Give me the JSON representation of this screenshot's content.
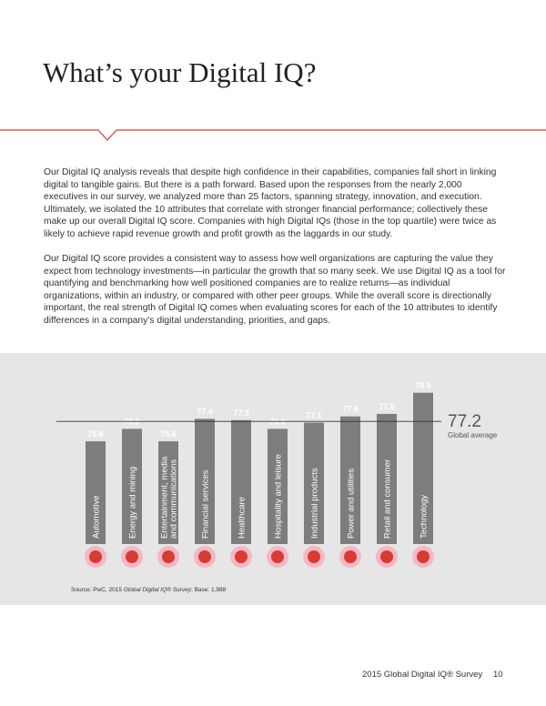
{
  "header": {
    "title": "What’s your Digital IQ?"
  },
  "paragraphs": [
    "Our Digital IQ analysis reveals that despite high confidence in their capabilities, companies fall short in linking digital to tangible gains. But there is a path forward. Based upon the responses from the nearly 2,000 executives in our survey, we analyzed more than 25 factors, spanning strategy, innovation, and execution. Ultimately, we isolated the 10 attributes that correlate with stronger financial performance; collectively these make up our overall Digital IQ score. Companies with high Digital IQs (those in the top quartile) were twice as likely to achieve rapid revenue growth and profit growth as the laggards in our study.",
    "Our Digital IQ score provides a consistent way to assess how well organizations are capturing the value they expect from technology investments—in particular the growth that so many seek. We use Digital IQ as a tool for quantifying and benchmarking how well positioned companies are to realize returns—as individual organizations, within an industry, or compared with other peer groups. While the overall score is directionally important, the real strength of Digital IQ comes when evaluating scores for each of the 10 attributes to identify differences in a company’s digital understanding, priorities, and gaps."
  ],
  "chart_data": {
    "type": "bar",
    "categories": [
      [
        "Automotive"
      ],
      [
        "Energy and mining"
      ],
      [
        "Entertainment, media",
        "and communications"
      ],
      [
        "Financial services"
      ],
      [
        "Healthcare"
      ],
      [
        "Hospitality and leisure"
      ],
      [
        "Industrial products"
      ],
      [
        "Power and utilities"
      ],
      [
        "Retail and consumer"
      ],
      [
        "Technology"
      ]
    ],
    "values": [
      75.6,
      76.6,
      75.6,
      77.4,
      77.3,
      76.6,
      77.1,
      77.6,
      77.8,
      79.5
    ],
    "color": "#7d7d7d",
    "ylim": [
      67.35,
      80.5
    ],
    "reference": {
      "value": 77.2,
      "label": "Global average"
    },
    "source": {
      "prefix": "Source: PwC, 2015 ",
      "italic": "Global Digital IQ® Survey",
      "suffix": "; Base: 1,988"
    }
  },
  "footer": {
    "title": "2015 Global Digital IQ® Survey",
    "page": "10"
  }
}
